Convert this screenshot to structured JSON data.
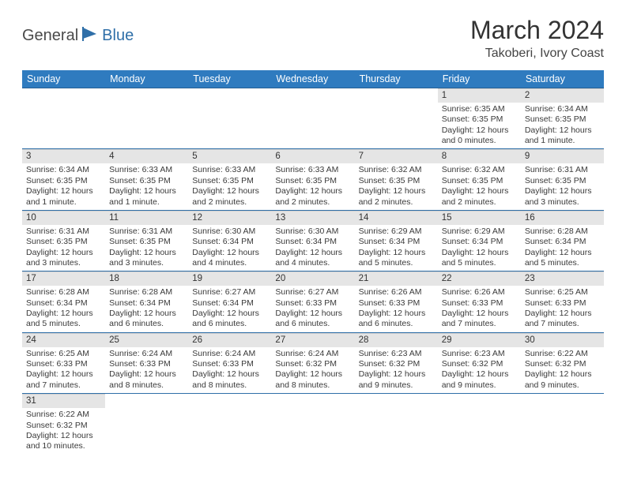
{
  "logo": {
    "part1": "General",
    "part2": "Blue"
  },
  "title": "March 2024",
  "subtitle": "Takoberi, Ivory Coast",
  "weekday_headers": [
    "Sunday",
    "Monday",
    "Tuesday",
    "Wednesday",
    "Thursday",
    "Friday",
    "Saturday"
  ],
  "colors": {
    "header_bg": "#2f7bbf",
    "header_border": "#265f93",
    "row_border": "#2f6fa8",
    "daynum_bg": "#e5e5e5",
    "text": "#3a3a3a",
    "logo_gray": "#4a4a4a",
    "logo_blue": "#2f6fa8"
  },
  "weeks": [
    [
      {
        "day": "",
        "sunrise": "",
        "sunset": "",
        "daylight": ""
      },
      {
        "day": "",
        "sunrise": "",
        "sunset": "",
        "daylight": ""
      },
      {
        "day": "",
        "sunrise": "",
        "sunset": "",
        "daylight": ""
      },
      {
        "day": "",
        "sunrise": "",
        "sunset": "",
        "daylight": ""
      },
      {
        "day": "",
        "sunrise": "",
        "sunset": "",
        "daylight": ""
      },
      {
        "day": "1",
        "sunrise": "Sunrise: 6:35 AM",
        "sunset": "Sunset: 6:35 PM",
        "daylight": "Daylight: 12 hours and 0 minutes."
      },
      {
        "day": "2",
        "sunrise": "Sunrise: 6:34 AM",
        "sunset": "Sunset: 6:35 PM",
        "daylight": "Daylight: 12 hours and 1 minute."
      }
    ],
    [
      {
        "day": "3",
        "sunrise": "Sunrise: 6:34 AM",
        "sunset": "Sunset: 6:35 PM",
        "daylight": "Daylight: 12 hours and 1 minute."
      },
      {
        "day": "4",
        "sunrise": "Sunrise: 6:33 AM",
        "sunset": "Sunset: 6:35 PM",
        "daylight": "Daylight: 12 hours and 1 minute."
      },
      {
        "day": "5",
        "sunrise": "Sunrise: 6:33 AM",
        "sunset": "Sunset: 6:35 PM",
        "daylight": "Daylight: 12 hours and 2 minutes."
      },
      {
        "day": "6",
        "sunrise": "Sunrise: 6:33 AM",
        "sunset": "Sunset: 6:35 PM",
        "daylight": "Daylight: 12 hours and 2 minutes."
      },
      {
        "day": "7",
        "sunrise": "Sunrise: 6:32 AM",
        "sunset": "Sunset: 6:35 PM",
        "daylight": "Daylight: 12 hours and 2 minutes."
      },
      {
        "day": "8",
        "sunrise": "Sunrise: 6:32 AM",
        "sunset": "Sunset: 6:35 PM",
        "daylight": "Daylight: 12 hours and 2 minutes."
      },
      {
        "day": "9",
        "sunrise": "Sunrise: 6:31 AM",
        "sunset": "Sunset: 6:35 PM",
        "daylight": "Daylight: 12 hours and 3 minutes."
      }
    ],
    [
      {
        "day": "10",
        "sunrise": "Sunrise: 6:31 AM",
        "sunset": "Sunset: 6:35 PM",
        "daylight": "Daylight: 12 hours and 3 minutes."
      },
      {
        "day": "11",
        "sunrise": "Sunrise: 6:31 AM",
        "sunset": "Sunset: 6:35 PM",
        "daylight": "Daylight: 12 hours and 3 minutes."
      },
      {
        "day": "12",
        "sunrise": "Sunrise: 6:30 AM",
        "sunset": "Sunset: 6:34 PM",
        "daylight": "Daylight: 12 hours and 4 minutes."
      },
      {
        "day": "13",
        "sunrise": "Sunrise: 6:30 AM",
        "sunset": "Sunset: 6:34 PM",
        "daylight": "Daylight: 12 hours and 4 minutes."
      },
      {
        "day": "14",
        "sunrise": "Sunrise: 6:29 AM",
        "sunset": "Sunset: 6:34 PM",
        "daylight": "Daylight: 12 hours and 5 minutes."
      },
      {
        "day": "15",
        "sunrise": "Sunrise: 6:29 AM",
        "sunset": "Sunset: 6:34 PM",
        "daylight": "Daylight: 12 hours and 5 minutes."
      },
      {
        "day": "16",
        "sunrise": "Sunrise: 6:28 AM",
        "sunset": "Sunset: 6:34 PM",
        "daylight": "Daylight: 12 hours and 5 minutes."
      }
    ],
    [
      {
        "day": "17",
        "sunrise": "Sunrise: 6:28 AM",
        "sunset": "Sunset: 6:34 PM",
        "daylight": "Daylight: 12 hours and 5 minutes."
      },
      {
        "day": "18",
        "sunrise": "Sunrise: 6:28 AM",
        "sunset": "Sunset: 6:34 PM",
        "daylight": "Daylight: 12 hours and 6 minutes."
      },
      {
        "day": "19",
        "sunrise": "Sunrise: 6:27 AM",
        "sunset": "Sunset: 6:34 PM",
        "daylight": "Daylight: 12 hours and 6 minutes."
      },
      {
        "day": "20",
        "sunrise": "Sunrise: 6:27 AM",
        "sunset": "Sunset: 6:33 PM",
        "daylight": "Daylight: 12 hours and 6 minutes."
      },
      {
        "day": "21",
        "sunrise": "Sunrise: 6:26 AM",
        "sunset": "Sunset: 6:33 PM",
        "daylight": "Daylight: 12 hours and 6 minutes."
      },
      {
        "day": "22",
        "sunrise": "Sunrise: 6:26 AM",
        "sunset": "Sunset: 6:33 PM",
        "daylight": "Daylight: 12 hours and 7 minutes."
      },
      {
        "day": "23",
        "sunrise": "Sunrise: 6:25 AM",
        "sunset": "Sunset: 6:33 PM",
        "daylight": "Daylight: 12 hours and 7 minutes."
      }
    ],
    [
      {
        "day": "24",
        "sunrise": "Sunrise: 6:25 AM",
        "sunset": "Sunset: 6:33 PM",
        "daylight": "Daylight: 12 hours and 7 minutes."
      },
      {
        "day": "25",
        "sunrise": "Sunrise: 6:24 AM",
        "sunset": "Sunset: 6:33 PM",
        "daylight": "Daylight: 12 hours and 8 minutes."
      },
      {
        "day": "26",
        "sunrise": "Sunrise: 6:24 AM",
        "sunset": "Sunset: 6:33 PM",
        "daylight": "Daylight: 12 hours and 8 minutes."
      },
      {
        "day": "27",
        "sunrise": "Sunrise: 6:24 AM",
        "sunset": "Sunset: 6:32 PM",
        "daylight": "Daylight: 12 hours and 8 minutes."
      },
      {
        "day": "28",
        "sunrise": "Sunrise: 6:23 AM",
        "sunset": "Sunset: 6:32 PM",
        "daylight": "Daylight: 12 hours and 9 minutes."
      },
      {
        "day": "29",
        "sunrise": "Sunrise: 6:23 AM",
        "sunset": "Sunset: 6:32 PM",
        "daylight": "Daylight: 12 hours and 9 minutes."
      },
      {
        "day": "30",
        "sunrise": "Sunrise: 6:22 AM",
        "sunset": "Sunset: 6:32 PM",
        "daylight": "Daylight: 12 hours and 9 minutes."
      }
    ],
    [
      {
        "day": "31",
        "sunrise": "Sunrise: 6:22 AM",
        "sunset": "Sunset: 6:32 PM",
        "daylight": "Daylight: 12 hours and 10 minutes."
      },
      {
        "day": "",
        "sunrise": "",
        "sunset": "",
        "daylight": ""
      },
      {
        "day": "",
        "sunrise": "",
        "sunset": "",
        "daylight": ""
      },
      {
        "day": "",
        "sunrise": "",
        "sunset": "",
        "daylight": ""
      },
      {
        "day": "",
        "sunrise": "",
        "sunset": "",
        "daylight": ""
      },
      {
        "day": "",
        "sunrise": "",
        "sunset": "",
        "daylight": ""
      },
      {
        "day": "",
        "sunrise": "",
        "sunset": "",
        "daylight": ""
      }
    ]
  ]
}
